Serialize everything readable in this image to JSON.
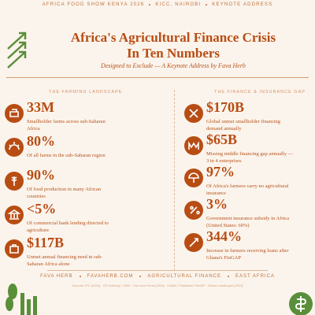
{
  "header": {
    "items": [
      "AFRICA FOOD SHOW KENYA 2026",
      "KICC, NAIROBI",
      "KEYNOTE ADDRESS"
    ]
  },
  "title": {
    "lines": [
      "Africa's Agricultural Finance Crisis",
      "In Ten Numbers"
    ]
  },
  "subtitle": "Designed to Exclude — A Keynote Address by Fava Herb",
  "sections": [
    {
      "heading": "THE FARMING LANDSCAPE",
      "items": [
        {
          "number": "33M",
          "text": "Smallholder farms across sub-Saharan Africa"
        },
        {
          "number": "80%",
          "text": "Of all farms in the sub-Saharan region"
        },
        {
          "number": "90%",
          "text": "Of food production in many African countries"
        },
        {
          "number": "<5%",
          "text": "Of commercial bank lending directed to agriculture"
        },
        {
          "number": "$117B",
          "text": "Unmet annual financing need in sub-Saharan Africa alone"
        }
      ]
    },
    {
      "heading": "THE FINANCE & INSURANCE GAP",
      "items": [
        {
          "number": "$170B",
          "text": "Global unmet smallholder financing demand annually"
        },
        {
          "number": "$65B",
          "text": "Missing middle financing gap annually — 3 in 4 enterprises"
        },
        {
          "number": "97%",
          "text": "Of Africa's farmers carry no agricultural insurance"
        },
        {
          "number": "3%",
          "text": "Government insurance subsidy in Africa (United States: 60%)"
        },
        {
          "number": "344%",
          "text": "Increase in farmers receiving loans after Ghana's FinGAP"
        }
      ]
    }
  ],
  "footer": {
    "items": [
      "FAVA HERB",
      "FAVAHERB.COM",
      "AGRICULTURAL FINANCE",
      "EAST AFRICA"
    ],
    "sources": "Sources: IFC (2024) · ISF Advisory / IFAD · One Acre Fund (2024) · USAID / Palladium FinGAP · Global Landscape (2024)"
  }
}
